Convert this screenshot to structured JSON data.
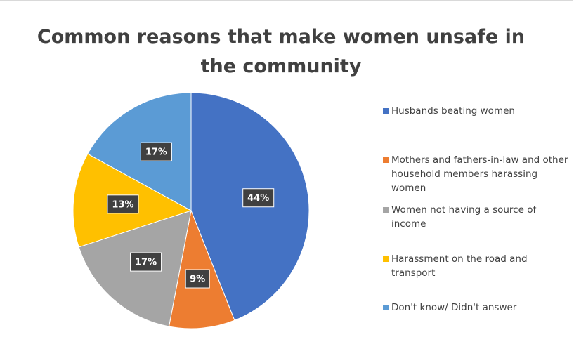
{
  "chart_data": {
    "type": "pie",
    "title": "Common reasons that make women unsafe in\nthe community",
    "slices": [
      {
        "label": "Husbands beating women",
        "value": 44,
        "display": "44%",
        "color": "#4472c4"
      },
      {
        "label": "Mothers and fathers-in-law and other household members  harassing women",
        "value": 9,
        "display": "9%",
        "color": "#ed7d31"
      },
      {
        "label": "Women not having a source of income",
        "value": 17,
        "display": "17%",
        "color": "#a5a5a5"
      },
      {
        "label": "Harassment on the road and transport",
        "value": 13,
        "display": "13%",
        "color": "#ffc000"
      },
      {
        "label": "Don't know/ Didn't answer",
        "value": 17,
        "display": "17%",
        "color": "#5b9bd5"
      }
    ],
    "legend_position": "right"
  }
}
